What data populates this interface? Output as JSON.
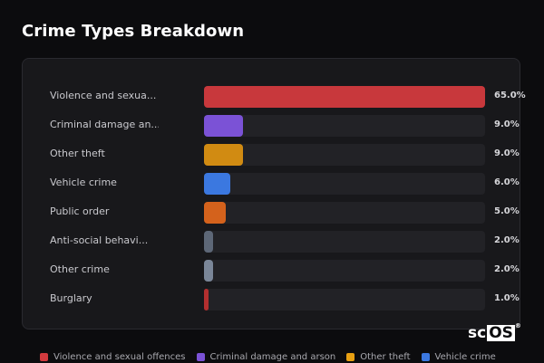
{
  "title": "Crime Types Breakdown",
  "chart_data": {
    "type": "bar",
    "orientation": "horizontal",
    "title": "Crime Types Breakdown",
    "xlim": [
      0,
      65
    ],
    "categories": [
      "Violence and sexual offences",
      "Criminal damage and arson",
      "Other theft",
      "Vehicle crime",
      "Public order",
      "Anti-social behaviour",
      "Other crime",
      "Burglary"
    ],
    "display_labels": [
      "Violence and sexua...",
      "Criminal damage an...",
      "Other theft",
      "Vehicle crime",
      "Public order",
      "Anti-social behavi...",
      "Other crime",
      "Burglary"
    ],
    "values": [
      65.0,
      9.0,
      9.0,
      6.0,
      5.0,
      2.0,
      2.0,
      1.0
    ],
    "value_labels": [
      "65.0%",
      "9.0%",
      "9.0%",
      "6.0%",
      "5.0%",
      "2.0%",
      "2.0%",
      "1.0%"
    ],
    "colors": [
      "#c8383c",
      "#7b52d6",
      "#d18b12",
      "#3b78e0",
      "#d4621c",
      "#5d6777",
      "#7a8698",
      "#b32f2f"
    ],
    "legend": {
      "placement": "bottom",
      "entries": [
        {
          "label": "Violence and sexual offences",
          "color": "#d23a3e"
        },
        {
          "label": "Criminal damage and arson",
          "color": "#7b52d6"
        },
        {
          "label": "Other theft",
          "color": "#e8a012"
        },
        {
          "label": "Vehicle crime",
          "color": "#3b78e0"
        }
      ]
    }
  },
  "watermark": {
    "prefix": "sc",
    "boxed": "OS",
    "mark": "®"
  }
}
